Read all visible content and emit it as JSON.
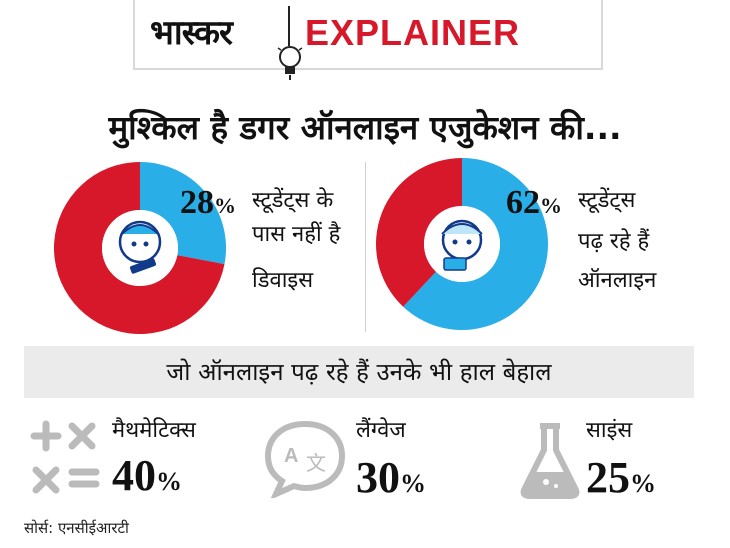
{
  "header": {
    "brand": "भास्कर",
    "label": "EXPLAINER"
  },
  "headline": "मुश्किल है डगर ऑनलाइन एजुकेशन की...",
  "chart_data": [
    {
      "type": "pie",
      "values": [
        28,
        72
      ],
      "annotation_value": "28",
      "annotation_unit": "%",
      "annotation_lines": [
        "स्टूडेंट्स के",
        "पास नहीं है",
        "डिवाइस"
      ]
    },
    {
      "type": "pie",
      "values": [
        62,
        38
      ],
      "annotation_value": "62",
      "annotation_unit": "%",
      "annotation_lines": [
        "स्टूडेंट्स",
        "पढ़ रहे हैं",
        "ऑनलाइन"
      ]
    }
  ],
  "colors": {
    "highlight": "#29aee8",
    "rest": "#d7182a",
    "banner": "#ebebeb"
  },
  "banner_text": "जो ऑनलाइन पढ़ रहे हैं उनके भी हाल बेहाल",
  "metrics": [
    {
      "label": "मैथमेटिक्स",
      "value": "40",
      "unit": "%",
      "icon": "math-symbols-icon"
    },
    {
      "label": "लैंग्वेज",
      "value": "30",
      "unit": "%",
      "icon": "speech-bubble-translate-icon"
    },
    {
      "label": "साइंस",
      "value": "25",
      "unit": "%",
      "icon": "flask-icon"
    }
  ],
  "source": "सोर्स: एनसीईआरटी"
}
